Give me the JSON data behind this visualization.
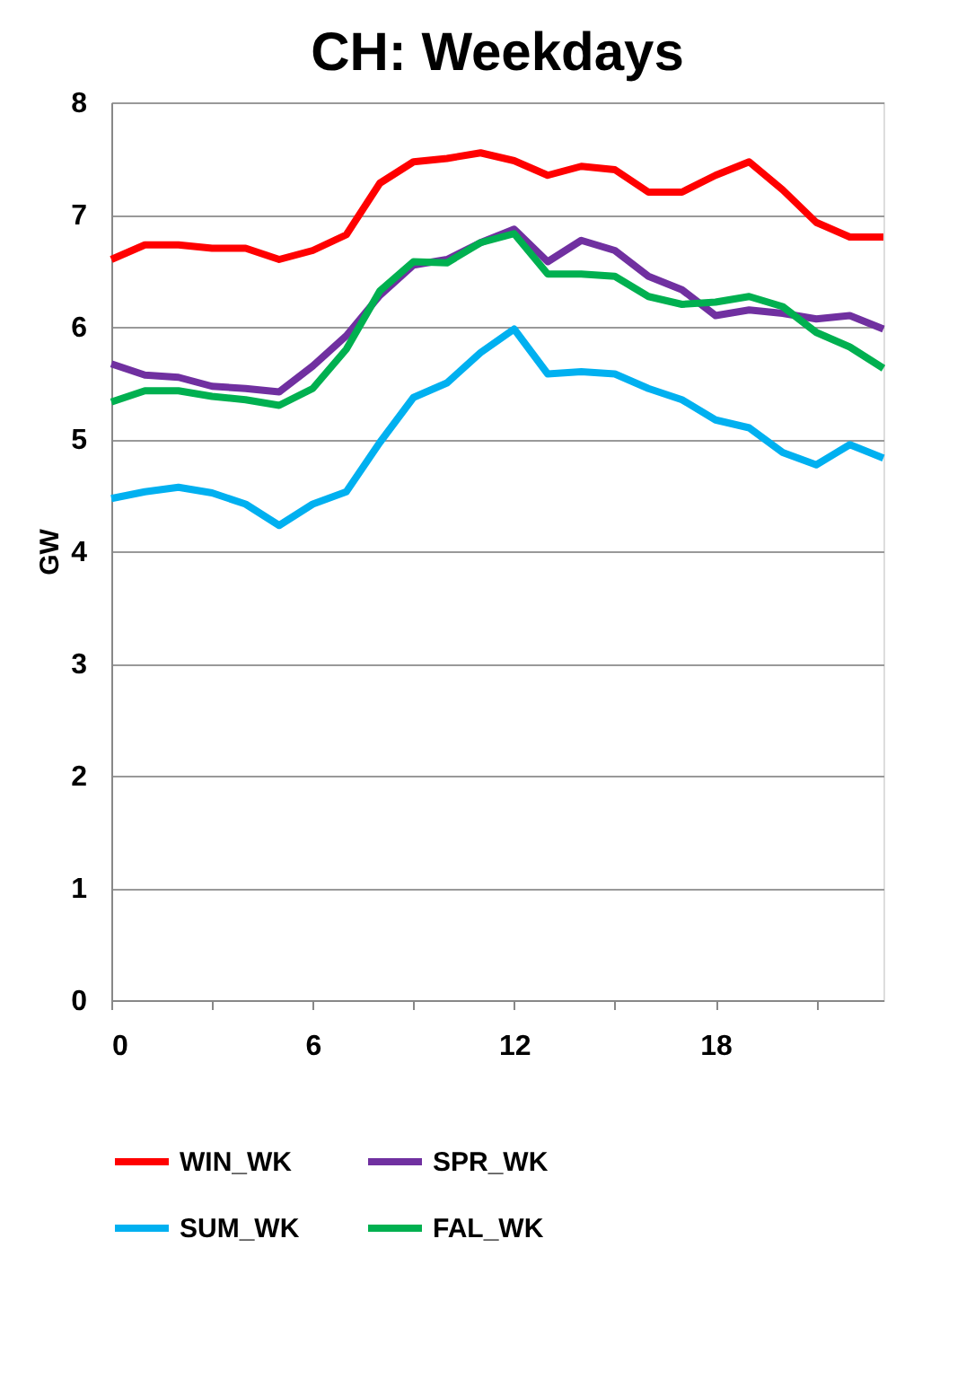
{
  "chart_data": {
    "type": "line",
    "title": "CH: Weekdays",
    "ylabel": "GW",
    "x": [
      0,
      1,
      2,
      3,
      4,
      5,
      6,
      7,
      8,
      9,
      10,
      11,
      12,
      13,
      14,
      15,
      16,
      17,
      18,
      19,
      20,
      21,
      22,
      23
    ],
    "xlim": [
      0,
      23
    ],
    "xticks": [
      0,
      {
        "value": 3,
        "label": null
      },
      6,
      {
        "value": 9,
        "label": null
      },
      12,
      {
        "value": 15,
        "label": null
      },
      18,
      {
        "value": 21,
        "label": null
      }
    ],
    "ylim": [
      0,
      8
    ],
    "yticks": [
      0,
      1,
      2,
      3,
      4,
      5,
      6,
      7,
      8
    ],
    "grid": "y",
    "legend": "bottom",
    "marker": "none",
    "line_style": "solid",
    "series": [
      {
        "name": "WIN_WK",
        "color": "#ff0000",
        "values": [
          6.6,
          6.73,
          6.73,
          6.7,
          6.7,
          6.6,
          6.68,
          6.82,
          7.28,
          7.47,
          7.5,
          7.55,
          7.48,
          7.35,
          7.43,
          7.4,
          7.2,
          7.2,
          7.35,
          7.47,
          7.22,
          6.93,
          6.8,
          6.8
        ]
      },
      {
        "name": "SPR_WK",
        "color": "#7030a0",
        "values": [
          5.67,
          5.57,
          5.55,
          5.47,
          5.45,
          5.42,
          5.65,
          5.92,
          6.28,
          6.55,
          6.6,
          6.75,
          6.87,
          6.58,
          6.77,
          6.68,
          6.45,
          6.33,
          6.1,
          6.15,
          6.12,
          6.07,
          6.1,
          5.98
        ]
      },
      {
        "name": "SUM_WK",
        "color": "#00b0f0",
        "values": [
          4.47,
          4.53,
          4.57,
          4.52,
          4.42,
          4.23,
          4.42,
          4.53,
          4.97,
          5.37,
          5.5,
          5.77,
          5.98,
          5.58,
          5.6,
          5.58,
          5.45,
          5.35,
          5.17,
          5.1,
          4.88,
          4.77,
          4.95,
          4.83
        ]
      },
      {
        "name": "FAL_WK",
        "color": "#00b050",
        "values": [
          5.33,
          5.43,
          5.43,
          5.38,
          5.35,
          5.3,
          5.45,
          5.8,
          6.32,
          6.58,
          6.57,
          6.75,
          6.83,
          6.47,
          6.47,
          6.45,
          6.27,
          6.2,
          6.22,
          6.27,
          6.18,
          5.95,
          5.82,
          5.63
        ]
      }
    ]
  }
}
